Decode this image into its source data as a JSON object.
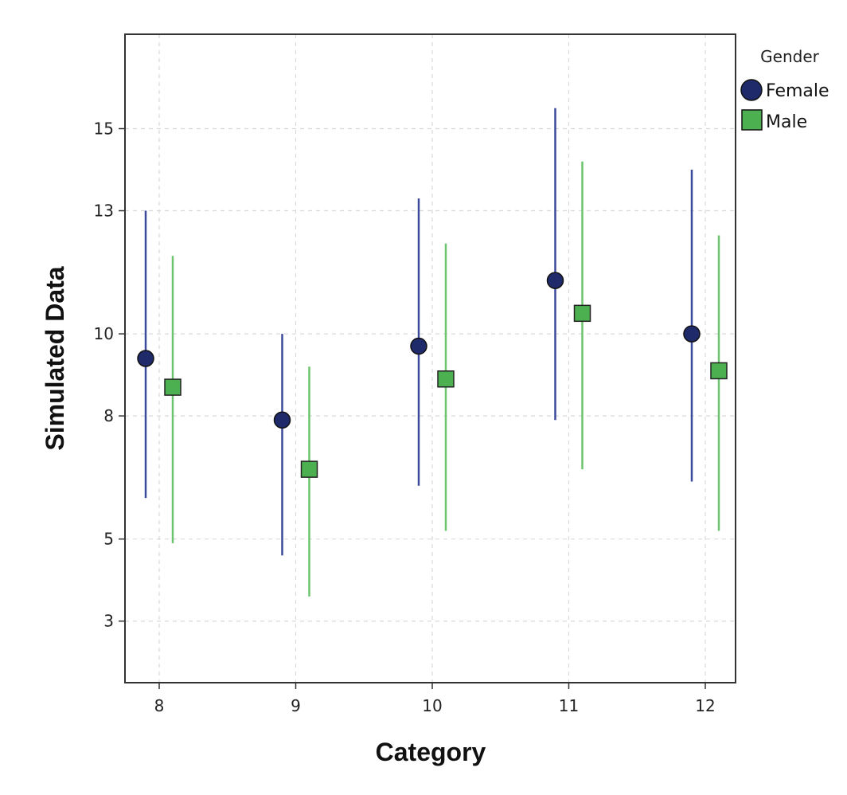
{
  "chart_data": {
    "type": "scatter",
    "xlabel": "Category",
    "ylabel": "Simulated Data",
    "categories": [
      "8",
      "9",
      "10",
      "11",
      "12"
    ],
    "yticks": [
      3,
      5,
      8,
      10,
      13,
      15
    ],
    "ytick_labels": [
      "3",
      "5",
      "8",
      "10",
      "13",
      "15"
    ],
    "ylim": [
      1.5,
      17.3
    ],
    "grid": true,
    "legend": {
      "title": "Gender",
      "position": "top-right, outside plot"
    },
    "series": [
      {
        "name": "Female",
        "marker": "circle",
        "color": "#1f2a6b",
        "bar_color": "#3b4a9a",
        "values": [
          9.4,
          7.9,
          9.7,
          11.3,
          10.0
        ],
        "lower": [
          6.0,
          4.6,
          6.3,
          7.9,
          6.4
        ],
        "upper": [
          13.0,
          10.0,
          13.3,
          15.5,
          14.0
        ]
      },
      {
        "name": "Male",
        "marker": "square",
        "color": "#4caf50",
        "bar_color": "#6cc46c",
        "values": [
          8.7,
          6.7,
          8.9,
          10.5,
          9.1
        ],
        "lower": [
          4.9,
          3.6,
          5.2,
          6.7,
          5.2
        ],
        "upper": [
          11.9,
          9.2,
          12.2,
          14.2,
          12.4
        ]
      }
    ]
  }
}
